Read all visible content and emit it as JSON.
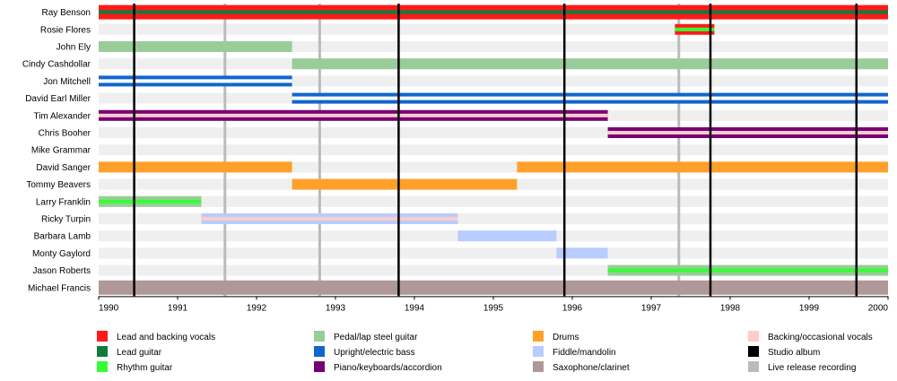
{
  "chart_data": {
    "type": "timeline",
    "title": "",
    "xlim": [
      1990,
      2000
    ],
    "ticks": [
      "1990",
      "1991",
      "1992",
      "1993",
      "1994",
      "1995",
      "1996",
      "1997",
      "1998",
      "1999",
      "2000"
    ],
    "members": [
      "Ray Benson",
      "Rosie Flores",
      "John Ely",
      "Cindy Cashdollar",
      "Jon Mitchell",
      "David Earl Miller",
      "Tim Alexander",
      "Chris Booher",
      "Mike Grammar",
      "David Sanger",
      "Tommy Beavers",
      "Larry Franklin",
      "Ricky Turpin",
      "Barbara Lamb",
      "Monty Gaylord",
      "Jason Roberts",
      "Michael Francis"
    ],
    "roles": [
      {
        "key": "lead_vocals",
        "label": "Lead and backing vocals",
        "color": "#ff1a1a"
      },
      {
        "key": "lead_guitar",
        "label": "Lead guitar",
        "color": "#117a3c"
      },
      {
        "key": "rhythm_guitar",
        "label": "Rhythm guitar",
        "color": "#33ff33"
      },
      {
        "key": "steel_guitar",
        "label": "Pedal/lap steel guitar",
        "color": "#99cc99"
      },
      {
        "key": "bass",
        "label": "Upright/electric bass",
        "color": "#1166cc"
      },
      {
        "key": "piano",
        "label": "Piano/keyboards/accordion",
        "color": "#770077"
      },
      {
        "key": "drums",
        "label": "Drums",
        "color": "#ffa02a"
      },
      {
        "key": "fiddle",
        "label": "Fiddle/mandolin",
        "color": "#b8ccff"
      },
      {
        "key": "sax",
        "label": "Saxophone/clarinet",
        "color": "#b09898"
      },
      {
        "key": "backing_vocals",
        "label": "Backing/occasional vocals",
        "color": "#ffcccc"
      },
      {
        "key": "studio_album",
        "label": "Studio album",
        "color": "#000000"
      },
      {
        "key": "live_release",
        "label": "Live release recording",
        "color": "#bbbbbb"
      }
    ],
    "bars": [
      {
        "member": 0,
        "start": 1990.0,
        "end": 2000.0,
        "color": "#ff1a1a",
        "stripe": "#117a3c"
      },
      {
        "member": 1,
        "start": 1997.3,
        "end": 1997.8,
        "color": "#ff1a1a",
        "stripe": "#33ff33"
      },
      {
        "member": 2,
        "start": 1990.0,
        "end": 1992.45,
        "color": "#99cc99"
      },
      {
        "member": 3,
        "start": 1992.45,
        "end": 2000.0,
        "color": "#99cc99"
      },
      {
        "member": 4,
        "start": 1990.0,
        "end": 1992.45,
        "color": "#1166cc",
        "stripe": "#ffffff"
      },
      {
        "member": 5,
        "start": 1992.45,
        "end": 2000.0,
        "color": "#1166cc",
        "stripe": "#ffffff"
      },
      {
        "member": 6,
        "start": 1990.0,
        "end": 1996.45,
        "color": "#770077",
        "stripe": "#ffcccc"
      },
      {
        "member": 7,
        "start": 1996.45,
        "end": 2000.0,
        "color": "#770077",
        "stripe": "#ffcccc"
      },
      {
        "member": 9,
        "start": 1990.0,
        "end": 1992.45,
        "color": "#ffa02a"
      },
      {
        "member": 9,
        "start": 1995.3,
        "end": 2000.0,
        "color": "#ffa02a"
      },
      {
        "member": 10,
        "start": 1992.45,
        "end": 1995.3,
        "color": "#ffa02a"
      },
      {
        "member": 11,
        "start": 1990.0,
        "end": 1991.3,
        "color": "#99cc99",
        "stripe": "#33ff33"
      },
      {
        "member": 12,
        "start": 1991.3,
        "end": 1994.55,
        "color": "#b8ccff",
        "stripe": "#ffcccc"
      },
      {
        "member": 13,
        "start": 1994.55,
        "end": 1995.8,
        "color": "#b8ccff"
      },
      {
        "member": 14,
        "start": 1995.8,
        "end": 1996.45,
        "color": "#b8ccff"
      },
      {
        "member": 15,
        "start": 1996.45,
        "end": 2000.0,
        "color": "#99cc99",
        "stripe": "#33ff33"
      },
      {
        "member": 16,
        "start": 1990.0,
        "end": 2000.0,
        "color": "#b09898"
      }
    ],
    "studio_albums": [
      1990.45,
      1993.8,
      1995.9,
      1997.75,
      1999.6
    ],
    "live_releases": [
      1991.6,
      1992.8,
      1997.35
    ]
  }
}
